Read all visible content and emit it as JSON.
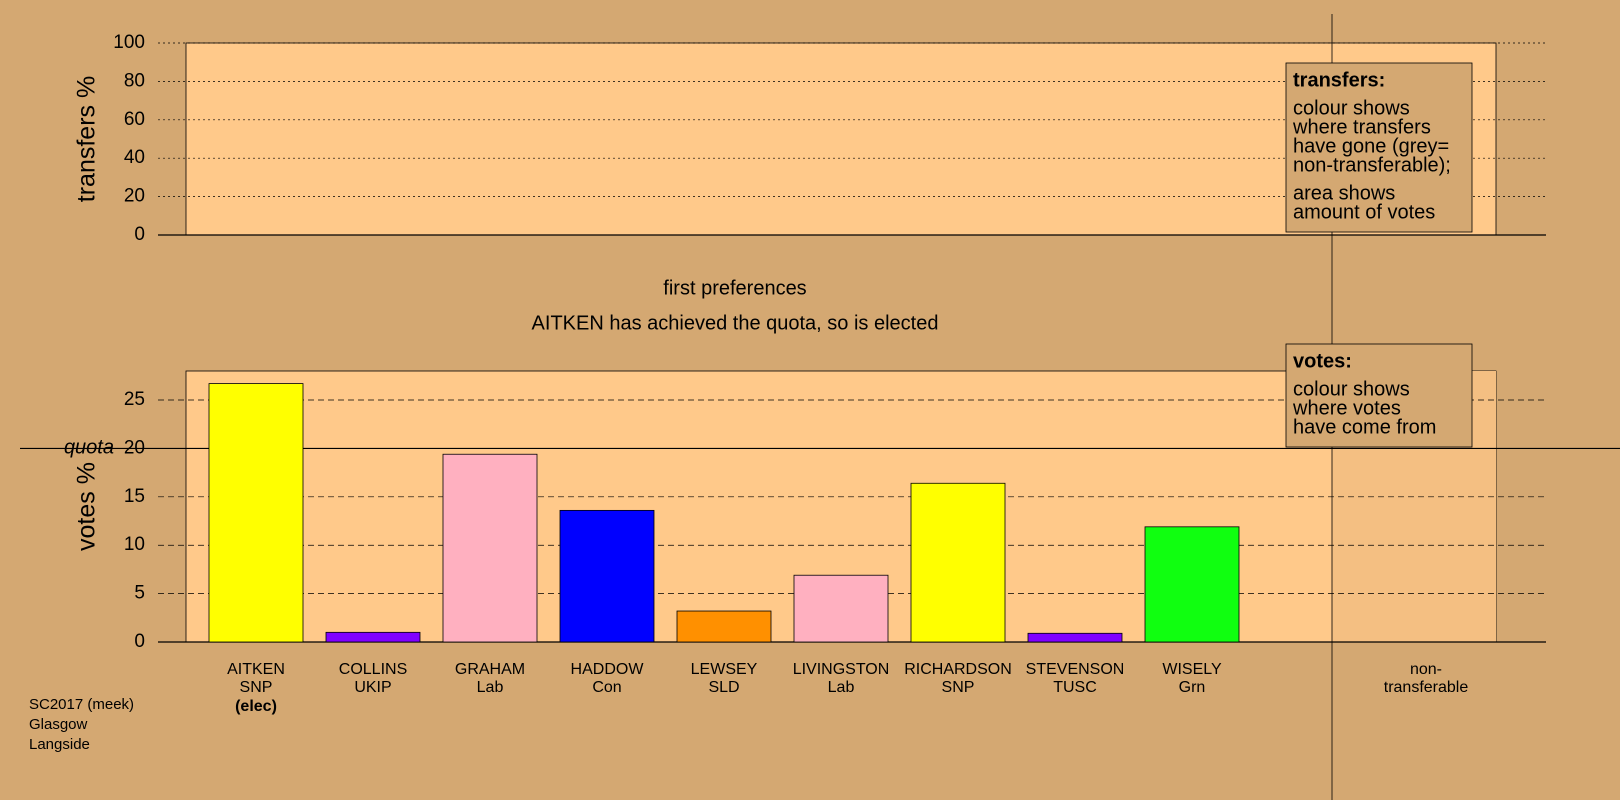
{
  "chart_data": [
    {
      "type": "bar",
      "ylabel": "transfers %",
      "ylim": [
        0,
        100
      ],
      "yticks": [
        0,
        20,
        40,
        60,
        80,
        100
      ],
      "legend_title": "transfers:",
      "legend_lines": [
        [
          "colour shows",
          "where transfers",
          "have gone (grey=",
          "non-transferable);"
        ],
        [
          "area shows",
          "amount of votes"
        ]
      ]
    },
    {
      "type": "bar",
      "title": [
        "first preferences",
        "AITKEN has achieved the quota, so is elected"
      ],
      "ylabel": "votes %",
      "ylim": [
        0,
        28
      ],
      "yticks": [
        0,
        5,
        10,
        15,
        20,
        25
      ],
      "quota": {
        "value": 20,
        "label": "quota"
      },
      "categories": [
        "AITKEN",
        "COLLINS",
        "GRAHAM",
        "HADDOW",
        "LEWSEY",
        "LIVINGSTON",
        "RICHARDSON",
        "STEVENSON",
        "WISELY",
        "non-"
      ],
      "parties": [
        "SNP",
        "UKIP",
        "Lab",
        "Con",
        "SLD",
        "Lab",
        "SNP",
        "TUSC",
        "Grn",
        "transferable"
      ],
      "notes": [
        "(elec)",
        null,
        null,
        null,
        null,
        null,
        null,
        null,
        null,
        null
      ],
      "values": [
        26.7,
        1.0,
        19.4,
        13.6,
        3.2,
        6.9,
        16.4,
        0.9,
        11.9,
        null
      ],
      "colors": [
        "#ffff00",
        "#8000ff",
        "#ffb0c0",
        "#0000ff",
        "#ff9000",
        "#ffb0c0",
        "#ffff00",
        "#8000ff",
        "#10ff10",
        null
      ],
      "legend_title": "votes:",
      "legend_lines": [
        [
          "colour shows",
          "where votes",
          "have come from"
        ]
      ]
    }
  ],
  "footer": [
    "SC2017 (meek)",
    "Glasgow",
    "Langside"
  ]
}
